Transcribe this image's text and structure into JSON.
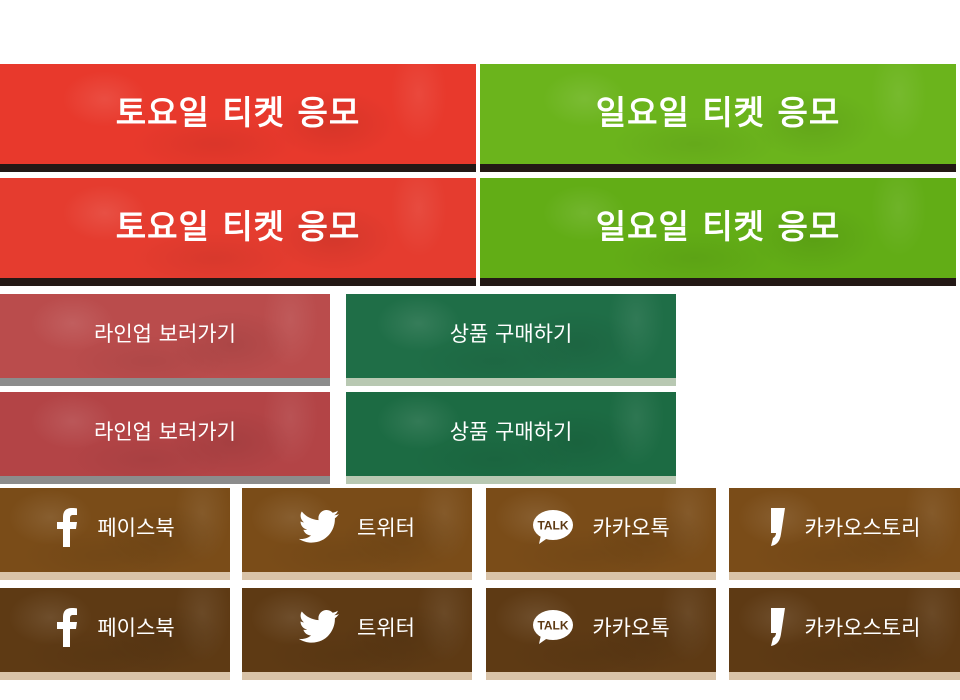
{
  "ticket": {
    "saturday_label": "토요일 티켓 응모",
    "sunday_label": "일요일 티켓 응모"
  },
  "actions": {
    "lineup_label": "라인업 보러가기",
    "shop_label": "상품 구매하기"
  },
  "social": {
    "facebook_label": "페이스북",
    "twitter_label": "트위터",
    "kakaotalk_label": "카카오톡",
    "kakaotalk_icon_text": "TALK",
    "kakaostory_label": "카카오스토리"
  },
  "colors": {
    "saturday_red": "#e8392c",
    "sunday_green": "#6bb41c",
    "lineup_rose": "#ba4c4c",
    "shop_green": "#1f6e47",
    "social_brown": "#7a4c18",
    "social_brown_dark": "#5e3a14"
  }
}
